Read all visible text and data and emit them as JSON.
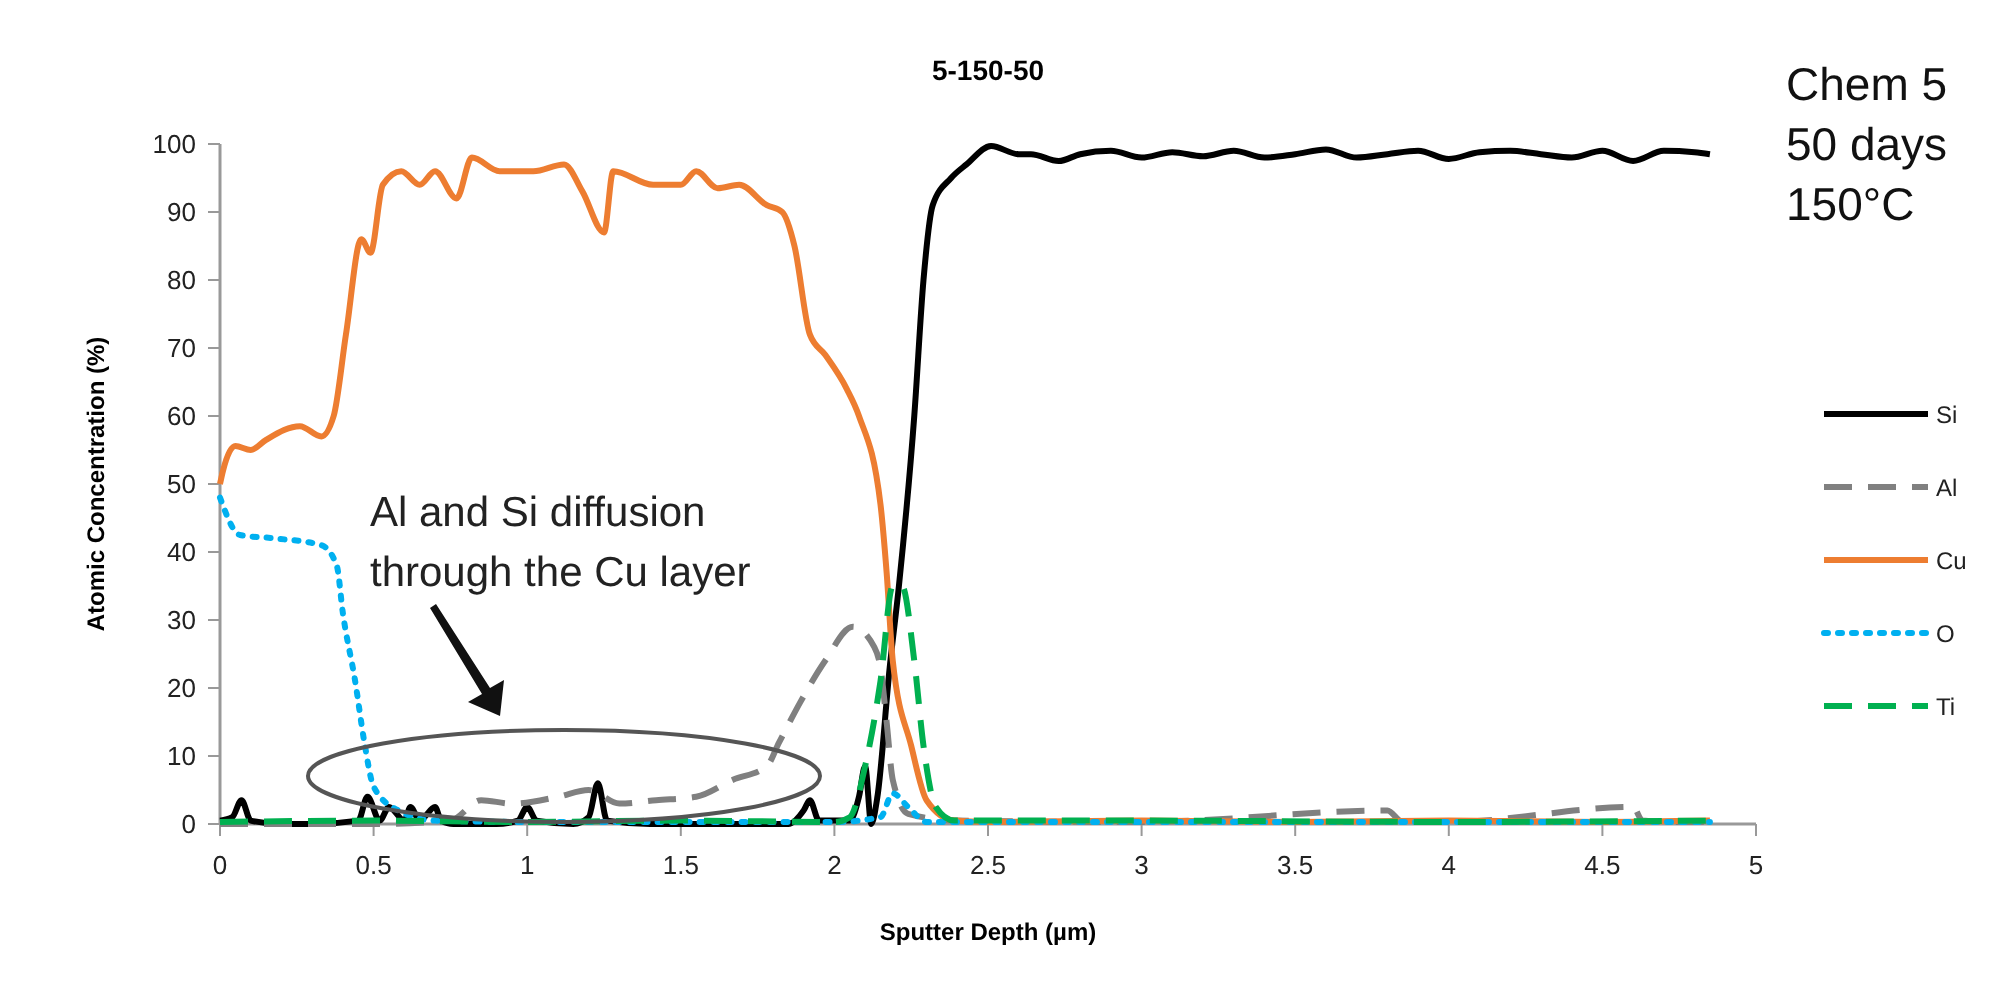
{
  "chart_data": {
    "type": "line",
    "title": "5-150-50",
    "xlabel": "Sputter Depth (µm)",
    "ylabel": "Atomic Concentration (%)",
    "xlim": [
      0,
      5
    ],
    "xticks": [
      0,
      0.5,
      1,
      1.5,
      2,
      2.5,
      3,
      3.5,
      4,
      4.5,
      5
    ],
    "ylim": [
      0,
      100
    ],
    "yticks": [
      0,
      10,
      20,
      30,
      40,
      50,
      60,
      70,
      80,
      90,
      100
    ],
    "legend": "right",
    "grid": false,
    "annotations": [
      "Al and Si diffusion through the Cu layer",
      "Chem 5",
      "50 days",
      "150°C"
    ],
    "series": [
      {
        "name": "Si",
        "color": "#000000",
        "line_style": "solid",
        "x": [
          0,
          0.04,
          0.07,
          0.1,
          0.2,
          0.3,
          0.45,
          0.48,
          0.52,
          0.55,
          0.6,
          0.62,
          0.65,
          0.7,
          0.72,
          0.76,
          0.9,
          0.97,
          1.0,
          1.03,
          1.15,
          1.2,
          1.23,
          1.26,
          1.4,
          1.6,
          1.85,
          1.9,
          1.92,
          1.95,
          2.05,
          2.08,
          2.1,
          2.12,
          2.14,
          2.18,
          2.21,
          2.26,
          2.29,
          2.32,
          2.38,
          2.43,
          2.51,
          2.6,
          2.64,
          2.73,
          2.8,
          2.9,
          3.0,
          3.1,
          3.2,
          3.3,
          3.4,
          3.5,
          3.6,
          3.7,
          3.8,
          3.9,
          4.0,
          4.1,
          4.2,
          4.3,
          4.4,
          4.5,
          4.6,
          4.7,
          4.8,
          4.85
        ],
        "values": [
          0.5,
          1,
          3.5,
          0.5,
          0,
          0,
          0.5,
          4,
          0.5,
          2.5,
          0.5,
          2.5,
          0.5,
          2.5,
          0.5,
          0,
          0,
          0.5,
          2.5,
          0.5,
          0,
          1,
          6,
          0.5,
          0,
          0,
          0,
          2,
          3.5,
          0.5,
          0.5,
          4,
          8.5,
          0,
          4,
          23,
          35,
          60,
          80,
          91,
          95,
          97,
          99.7,
          98.5,
          98.5,
          97.5,
          98.5,
          99,
          98,
          98.8,
          98.2,
          99,
          98,
          98.5,
          99.2,
          98,
          98.5,
          99,
          97.8,
          98.8,
          99,
          98.5,
          98,
          99,
          97.5,
          99,
          98.8,
          98.5
        ]
      },
      {
        "name": "Al",
        "color": "#808080",
        "line_style": "dashed",
        "x": [
          0,
          0.5,
          0.75,
          0.85,
          0.95,
          1.1,
          1.2,
          1.3,
          1.42,
          1.55,
          1.67,
          1.78,
          1.82,
          1.89,
          1.97,
          2.06,
          2.13,
          2.15,
          2.17,
          2.19,
          2.24,
          2.4,
          3.0,
          3.8,
          3.85,
          4.0,
          4.6,
          4.63,
          4.7,
          4.85
        ],
        "values": [
          0,
          0,
          0.5,
          3.5,
          3,
          4,
          5,
          3,
          3.5,
          4,
          6.5,
          8.5,
          12,
          18,
          24,
          29,
          26,
          23,
          15,
          6.5,
          1.5,
          0.5,
          0.3,
          2,
          0.3,
          0.3,
          2.5,
          0.5,
          0.3,
          0.3
        ]
      },
      {
        "name": "Cu",
        "color": "#ed7d31",
        "line_style": "solid",
        "x": [
          0,
          0.01,
          0.05,
          0.1,
          0.15,
          0.26,
          0.33,
          0.37,
          0.41,
          0.46,
          0.49,
          0.53,
          0.59,
          0.65,
          0.7,
          0.77,
          0.82,
          0.91,
          1.02,
          1.12,
          1.18,
          1.25,
          1.28,
          1.41,
          1.5,
          1.55,
          1.62,
          1.69,
          1.78,
          1.83,
          1.87,
          1.92,
          1.97,
          2.04,
          2.08,
          2.15,
          2.17,
          2.19,
          2.25,
          2.3,
          2.39,
          2.5,
          3.0,
          3.5,
          4.0,
          4.5,
          4.85
        ],
        "values": [
          50,
          52,
          55.6,
          55,
          56.5,
          58.5,
          57,
          60,
          72,
          86,
          84,
          94,
          96,
          94,
          96,
          92,
          98,
          96,
          96,
          97,
          93,
          87,
          96,
          94,
          94,
          96,
          93.5,
          94,
          91,
          90,
          85,
          72,
          69,
          64,
          60,
          47,
          37,
          24,
          11.5,
          3.5,
          0.5,
          0.3,
          0.5,
          0.3,
          0.5,
          0.3,
          0.5
        ]
      },
      {
        "name": "O",
        "color": "#00b0f0",
        "line_style": "dotted",
        "x": [
          0,
          0.065,
          0.18,
          0.33,
          0.38,
          0.4,
          0.44,
          0.47,
          0.5,
          0.58,
          0.7,
          1.0,
          1.5,
          2.0,
          2.15,
          2.19,
          2.24,
          2.3,
          3.0,
          4.0,
          4.85
        ],
        "values": [
          48,
          42.5,
          42,
          41,
          38,
          31,
          21,
          12,
          5.5,
          2,
          0.5,
          0.3,
          0.3,
          0.3,
          1,
          4.5,
          2.5,
          0.3,
          0.3,
          0.3,
          0.3
        ]
      },
      {
        "name": "Ti",
        "color": "#00b050",
        "line_style": "dashed",
        "x": [
          0,
          0.5,
          1.0,
          1.5,
          2.0,
          2.05,
          2.1,
          2.15,
          2.19,
          2.22,
          2.26,
          2.29,
          2.33,
          2.39,
          3.0,
          4.0,
          4.85
        ],
        "values": [
          0.3,
          0.5,
          0.3,
          0.5,
          0.3,
          1,
          8.5,
          21,
          35,
          35,
          24,
          11.5,
          2.5,
          0.5,
          0.5,
          0.3,
          0.5
        ]
      }
    ]
  }
}
